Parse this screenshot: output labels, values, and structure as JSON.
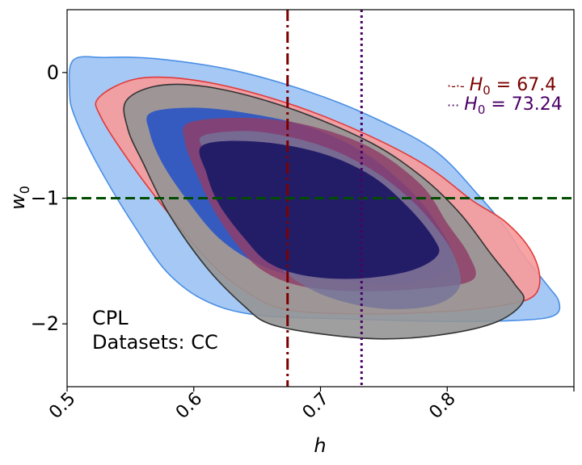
{
  "chart_data": {
    "type": "contour",
    "xlabel": "h",
    "ylabel": "w",
    "ylabel_sub": "0",
    "xlim": [
      0.5,
      0.9
    ],
    "ylim": [
      -2.5,
      0.5
    ],
    "xticks": [
      "0.5",
      "0.6",
      "0.7",
      "0.8"
    ],
    "xtick_values": [
      0.5,
      0.6,
      0.7,
      0.8
    ],
    "yticks": [
      "0",
      "−1",
      "−2"
    ],
    "ytick_values": [
      0,
      -1,
      -2
    ],
    "hline": {
      "y": -1,
      "color": "#004d00"
    },
    "vlines": [
      {
        "x": 0.674,
        "color": "#7b0000",
        "style": "dashdot"
      },
      {
        "x": 0.7324,
        "color": "#4b0066",
        "style": "dotted"
      }
    ],
    "legend": [
      {
        "marker": "·-·-",
        "text": "H",
        "sub": "0",
        "value": " = 67.4",
        "color": "#7b0000"
      },
      {
        "marker": "···",
        "text": "H",
        "sub": "0",
        "value": " = 73.24",
        "color": "#4b0066"
      }
    ],
    "annotations": [
      "CPL",
      "Datasets: CC"
    ],
    "contours": [
      {
        "id": "blue-outer",
        "fill": "#a6c8f5",
        "stroke": "#4a8fe6",
        "opacity": 1,
        "points": [
          [
            0.505,
            0.1
          ],
          [
            0.53,
            0.12
          ],
          [
            0.57,
            0.11
          ],
          [
            0.63,
            0.02
          ],
          [
            0.69,
            -0.15
          ],
          [
            0.74,
            -0.35
          ],
          [
            0.79,
            -0.62
          ],
          [
            0.825,
            -0.98
          ],
          [
            0.845,
            -1.22
          ],
          [
            0.86,
            -1.45
          ],
          [
            0.878,
            -1.68
          ],
          [
            0.888,
            -1.82
          ],
          [
            0.885,
            -1.93
          ],
          [
            0.86,
            -1.97
          ],
          [
            0.8,
            -1.98
          ],
          [
            0.72,
            -1.96
          ],
          [
            0.65,
            -1.93
          ],
          [
            0.61,
            -1.82
          ],
          [
            0.58,
            -1.6
          ],
          [
            0.555,
            -1.25
          ],
          [
            0.525,
            -0.75
          ],
          [
            0.506,
            -0.35
          ],
          [
            0.502,
            -0.15
          ]
        ]
      },
      {
        "id": "red-outer",
        "fill": "#f89a9a",
        "stroke": "#e03a3a",
        "opacity": 0.9,
        "points": [
          [
            0.525,
            -0.2
          ],
          [
            0.555,
            -0.05
          ],
          [
            0.6,
            -0.06
          ],
          [
            0.66,
            -0.2
          ],
          [
            0.72,
            -0.42
          ],
          [
            0.78,
            -0.72
          ],
          [
            0.82,
            -1.02
          ],
          [
            0.845,
            -1.18
          ],
          [
            0.865,
            -1.4
          ],
          [
            0.873,
            -1.62
          ],
          [
            0.868,
            -1.78
          ],
          [
            0.845,
            -1.85
          ],
          [
            0.8,
            -1.9
          ],
          [
            0.73,
            -1.92
          ],
          [
            0.67,
            -1.88
          ],
          [
            0.635,
            -1.7
          ],
          [
            0.61,
            -1.48
          ],
          [
            0.58,
            -1.12
          ],
          [
            0.55,
            -0.72
          ],
          [
            0.527,
            -0.36
          ]
        ]
      },
      {
        "id": "grey-outer",
        "fill": "#959595",
        "stroke": "#333333",
        "opacity": 0.9,
        "points": [
          [
            0.547,
            -0.22
          ],
          [
            0.575,
            -0.1
          ],
          [
            0.62,
            -0.13
          ],
          [
            0.68,
            -0.3
          ],
          [
            0.74,
            -0.56
          ],
          [
            0.78,
            -0.83
          ],
          [
            0.81,
            -1.12
          ],
          [
            0.835,
            -1.45
          ],
          [
            0.853,
            -1.68
          ],
          [
            0.86,
            -1.82
          ],
          [
            0.84,
            -1.98
          ],
          [
            0.8,
            -2.08
          ],
          [
            0.75,
            -2.12
          ],
          [
            0.7,
            -2.08
          ],
          [
            0.66,
            -2.0
          ],
          [
            0.64,
            -1.86
          ],
          [
            0.61,
            -1.55
          ],
          [
            0.58,
            -1.12
          ],
          [
            0.56,
            -0.72
          ],
          [
            0.548,
            -0.45
          ]
        ]
      },
      {
        "id": "blue-inner",
        "fill": "#2f57c2",
        "stroke": "none",
        "opacity": 0.95,
        "points": [
          [
            0.566,
            -0.32
          ],
          [
            0.6,
            -0.28
          ],
          [
            0.64,
            -0.32
          ],
          [
            0.69,
            -0.43
          ],
          [
            0.735,
            -0.64
          ],
          [
            0.772,
            -0.95
          ],
          [
            0.795,
            -1.25
          ],
          [
            0.805,
            -1.48
          ],
          [
            0.797,
            -1.6
          ],
          [
            0.765,
            -1.68
          ],
          [
            0.72,
            -1.66
          ],
          [
            0.68,
            -1.62
          ],
          [
            0.65,
            -1.52
          ],
          [
            0.62,
            -1.32
          ],
          [
            0.595,
            -1.02
          ],
          [
            0.575,
            -0.72
          ],
          [
            0.565,
            -0.47
          ]
        ]
      },
      {
        "id": "red-inner",
        "fill": "#8e3f6a",
        "stroke": "none",
        "opacity": 0.85,
        "points": [
          [
            0.596,
            -0.4
          ],
          [
            0.64,
            -0.36
          ],
          [
            0.69,
            -0.42
          ],
          [
            0.74,
            -0.6
          ],
          [
            0.78,
            -0.9
          ],
          [
            0.8,
            -1.2
          ],
          [
            0.817,
            -1.45
          ],
          [
            0.82,
            -1.65
          ],
          [
            0.78,
            -1.72
          ],
          [
            0.73,
            -1.74
          ],
          [
            0.685,
            -1.7
          ],
          [
            0.655,
            -1.58
          ],
          [
            0.635,
            -1.38
          ],
          [
            0.615,
            -1.08
          ],
          [
            0.6,
            -0.75
          ],
          [
            0.593,
            -0.55
          ]
        ]
      },
      {
        "id": "grey-inner",
        "fill": "#737398",
        "stroke": "none",
        "opacity": 0.8,
        "points": [
          [
            0.608,
            -0.5
          ],
          [
            0.65,
            -0.47
          ],
          [
            0.7,
            -0.58
          ],
          [
            0.74,
            -0.77
          ],
          [
            0.77,
            -1.0
          ],
          [
            0.79,
            -1.22
          ],
          [
            0.805,
            -1.45
          ],
          [
            0.81,
            -1.7
          ],
          [
            0.79,
            -1.85
          ],
          [
            0.75,
            -1.88
          ],
          [
            0.71,
            -1.8
          ],
          [
            0.68,
            -1.65
          ],
          [
            0.655,
            -1.42
          ],
          [
            0.635,
            -1.12
          ],
          [
            0.618,
            -0.82
          ],
          [
            0.608,
            -0.62
          ]
        ]
      },
      {
        "id": "navy-core",
        "fill": "#231d68",
        "stroke": "none",
        "opacity": 1,
        "points": [
          [
            0.607,
            -0.58
          ],
          [
            0.65,
            -0.55
          ],
          [
            0.7,
            -0.64
          ],
          [
            0.74,
            -0.82
          ],
          [
            0.77,
            -1.08
          ],
          [
            0.79,
            -1.33
          ],
          [
            0.792,
            -1.46
          ],
          [
            0.77,
            -1.58
          ],
          [
            0.73,
            -1.64
          ],
          [
            0.69,
            -1.62
          ],
          [
            0.66,
            -1.52
          ],
          [
            0.64,
            -1.32
          ],
          [
            0.62,
            -1.05
          ],
          [
            0.61,
            -0.8
          ]
        ]
      }
    ]
  }
}
